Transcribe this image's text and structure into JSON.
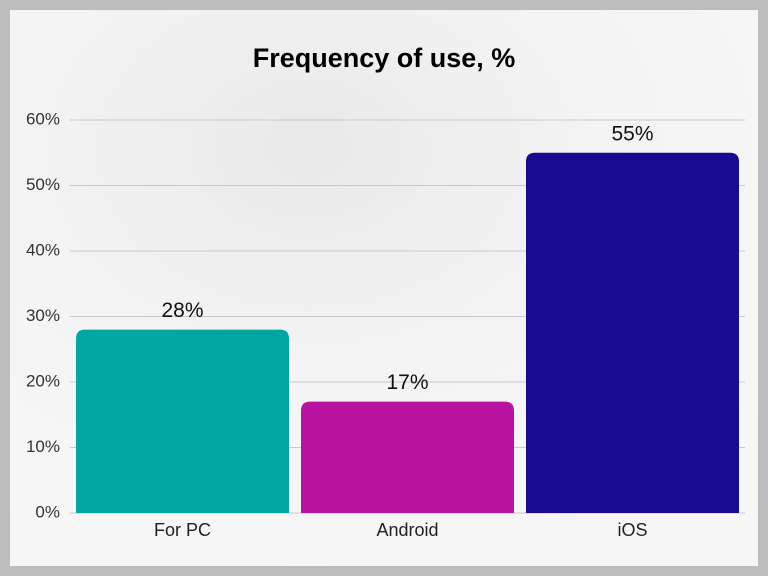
{
  "chart_data": {
    "type": "bar",
    "title": "Frequency of use, %",
    "categories": [
      "For PC",
      "Android",
      "iOS"
    ],
    "values": [
      28,
      17,
      55
    ],
    "value_labels": [
      "28%",
      "17%",
      "55%"
    ],
    "colors": [
      "#00a7a1",
      "#b8139e",
      "#170b90"
    ],
    "ylim": [
      0,
      60
    ],
    "yticks": [
      {
        "value": 0,
        "label": "0%"
      },
      {
        "value": 10,
        "label": "10%"
      },
      {
        "value": 20,
        "label": "20%"
      },
      {
        "value": 30,
        "label": "30%"
      },
      {
        "value": 40,
        "label": "40%"
      },
      {
        "value": 50,
        "label": "50%"
      },
      {
        "value": 60,
        "label": "60%"
      }
    ],
    "grid": true
  }
}
